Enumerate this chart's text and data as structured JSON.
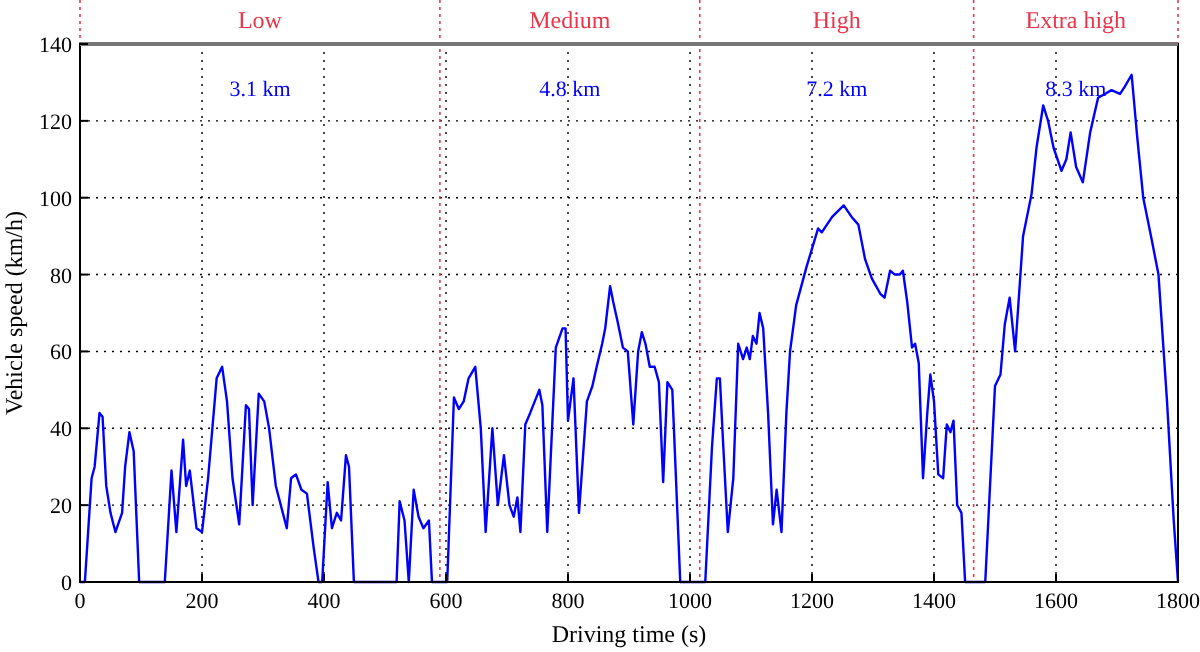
{
  "chart_data": {
    "type": "line",
    "xlabel": "Driving time (s)",
    "ylabel": "Vehicle speed (km/h)",
    "xlim": [
      0,
      1800
    ],
    "ylim": [
      0,
      140
    ],
    "xticks": [
      0,
      200,
      400,
      600,
      800,
      1000,
      1200,
      1400,
      1600,
      1800
    ],
    "yticks": [
      0,
      20,
      40,
      60,
      80,
      100,
      120,
      140
    ],
    "grid": true,
    "line_style": "solid",
    "marker": "none",
    "ref_lines": [
      {
        "axis": "x",
        "value": 0,
        "color": "#e8374a",
        "line_style": "dotted"
      },
      {
        "axis": "x",
        "value": 590,
        "color": "#e8374a",
        "line_style": "dotted"
      },
      {
        "axis": "x",
        "value": 1016,
        "color": "#e8374a",
        "line_style": "dotted"
      },
      {
        "axis": "x",
        "value": 1465,
        "color": "#e8374a",
        "line_style": "dotted"
      },
      {
        "axis": "x",
        "value": 1800,
        "color": "#e8374a",
        "line_style": "dotted"
      }
    ],
    "annotations": [
      "Low",
      "Medium",
      "High",
      "Extra high",
      "3.1 km",
      "4.8 km",
      "7.2 km",
      "8.3 km"
    ],
    "series": [
      {
        "color": "#0000ff",
        "x": [
          0,
          8,
          19,
          24,
          32,
          37,
          43,
          50,
          58,
          69,
          74,
          81,
          88,
          97,
          139,
          150,
          158,
          169,
          174,
          180,
          191,
          200,
          210,
          224,
          233,
          241,
          250,
          261,
          272,
          277,
          283,
          293,
          302,
          310,
          321,
          339,
          346,
          354,
          363,
          372,
          383,
          391,
          397,
          406,
          413,
          421,
          428,
          436,
          441,
          449,
          519,
          524,
          532,
          539,
          547,
          555,
          563,
          572,
          577,
          602,
          613,
          621,
          629,
          637,
          648,
          657,
          665,
          676,
          685,
          695,
          704,
          711,
          717,
          722,
          730,
          738,
          753,
          758,
          766,
          780,
          791,
          796,
          800,
          809,
          818,
          831,
          840,
          847,
          856,
          861,
          869,
          874,
          881,
          890,
          898,
          907,
          915,
          921,
          927,
          934,
          942,
          949,
          956,
          963,
          971,
          984,
          1025,
          1036,
          1044,
          1049,
          1054,
          1062,
          1071,
          1079,
          1087,
          1093,
          1098,
          1103,
          1109,
          1114,
          1120,
          1128,
          1136,
          1142,
          1150,
          1158,
          1164,
          1174,
          1191,
          1210,
          1216,
          1233,
          1252,
          1265,
          1276,
          1287,
          1298,
          1312,
          1319,
          1328,
          1336,
          1344,
          1349,
          1356,
          1364,
          1369,
          1375,
          1382,
          1389,
          1394,
          1400,
          1407,
          1415,
          1421,
          1427,
          1432,
          1438,
          1445,
          1451,
          1484,
          1500,
          1509,
          1516,
          1524,
          1533,
          1546,
          1560,
          1568,
          1579,
          1587,
          1596,
          1609,
          1617,
          1624,
          1633,
          1644,
          1656,
          1669,
          1680,
          1691,
          1705,
          1713,
          1724,
          1733,
          1743,
          1757,
          1768,
          1782,
          1793,
          1800
        ],
        "values": [
          0,
          0,
          27,
          30,
          44,
          43,
          25,
          18,
          13,
          18,
          30,
          39,
          34,
          0,
          0,
          29,
          13,
          37,
          25,
          29,
          14,
          13,
          27,
          53,
          56,
          47,
          27,
          15,
          46,
          45,
          20,
          49,
          47,
          40,
          25,
          14,
          27,
          28,
          24,
          23,
          9,
          0,
          0,
          26,
          14,
          18,
          16,
          33,
          30,
          0,
          0,
          21,
          16,
          0,
          24,
          17,
          14,
          16,
          0,
          0,
          48,
          45,
          47,
          53,
          56,
          40,
          13,
          40,
          20,
          33,
          20,
          17,
          22,
          13,
          41,
          44,
          50,
          46,
          13,
          61,
          66,
          66,
          42,
          53,
          18,
          47,
          51,
          56,
          62,
          66,
          77,
          73,
          68,
          61,
          60,
          41,
          60,
          65,
          62,
          56,
          56,
          52,
          26,
          52,
          50,
          0,
          0,
          35,
          53,
          53,
          37,
          13,
          27,
          62,
          58,
          61,
          58,
          64,
          62,
          70,
          66,
          44,
          15,
          24,
          13,
          44,
          60,
          72,
          82,
          92,
          91,
          95,
          98,
          95,
          93,
          84,
          79,
          75,
          74,
          81,
          80,
          80,
          81,
          73,
          61,
          62,
          57,
          27,
          44,
          54,
          47,
          28,
          27,
          41,
          39,
          42,
          20,
          18,
          0,
          0,
          51,
          54,
          67,
          74,
          60,
          90,
          101,
          113,
          124,
          120,
          113,
          107,
          110,
          117,
          108,
          104,
          117,
          126,
          127,
          128,
          127,
          129,
          132,
          116,
          100,
          89,
          80,
          47,
          16,
          0
        ]
      }
    ]
  }
}
